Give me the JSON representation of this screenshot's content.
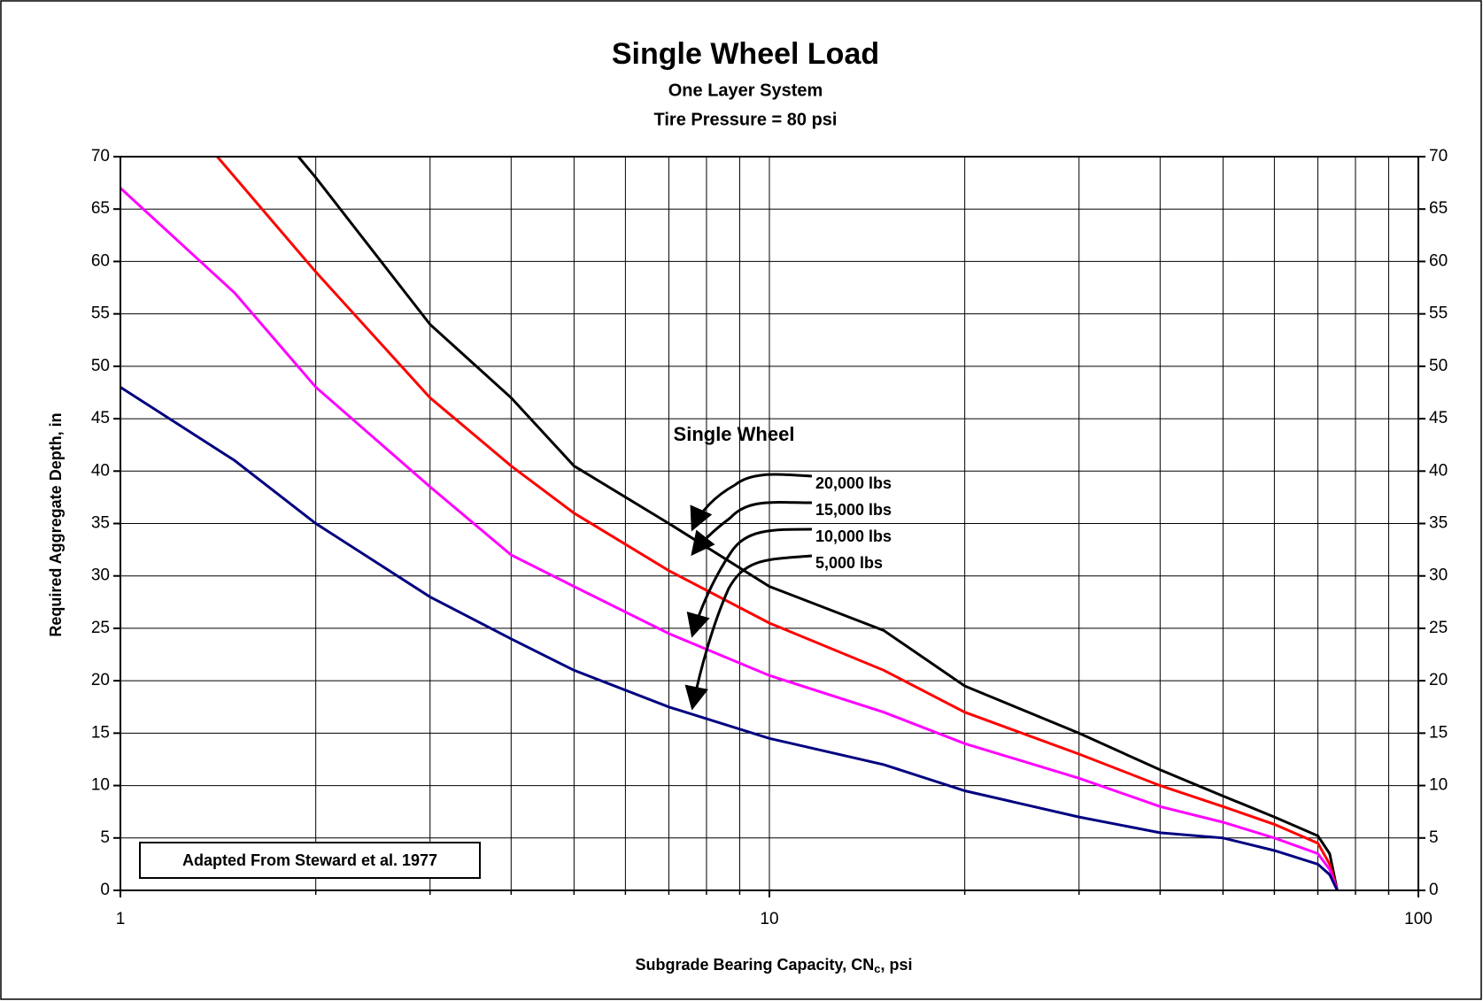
{
  "chart_data": {
    "type": "line",
    "title": "Single Wheel Load",
    "subtitle": [
      "One Layer System",
      "Tire Pressure = 80 psi"
    ],
    "x_label": [
      "Subgrade Bearing Capacity, CN",
      "c",
      ", psi"
    ],
    "y_label": "Required Aggregate Depth, in",
    "annotations": [
      "Single Wheel",
      "Adapted From Steward et al. 1977"
    ],
    "xscale": "log",
    "xlim": [
      1,
      100
    ],
    "xticks": [
      1,
      10,
      100
    ],
    "xminor": [
      2,
      3,
      4,
      5,
      6,
      7,
      8,
      9,
      20,
      30,
      40,
      50,
      60,
      70,
      80,
      90
    ],
    "ylim": [
      0,
      70
    ],
    "yticks": [
      0,
      5,
      10,
      15,
      20,
      25,
      30,
      35,
      40,
      45,
      50,
      55,
      60,
      65,
      70
    ],
    "grid": true,
    "series": [
      {
        "name": "20,000 lbs",
        "color": "#000000",
        "x": [
          1.88,
          2,
          3,
          4,
          5,
          7,
          10,
          15,
          20,
          30,
          40,
          50,
          60,
          70,
          73,
          75
        ],
        "values": [
          70,
          68,
          54,
          47,
          40.5,
          35,
          29,
          24.8,
          19.5,
          15,
          11.5,
          9,
          7,
          5.2,
          3.5,
          0
        ]
      },
      {
        "name": "15,000 lbs",
        "color": "#ff0000",
        "x": [
          1.41,
          2,
          3,
          4,
          5,
          7,
          10,
          15,
          20,
          30,
          40,
          50,
          60,
          70,
          73,
          75
        ],
        "values": [
          70,
          59,
          47,
          40.5,
          36,
          30.5,
          25.5,
          21,
          17,
          13,
          10,
          8,
          6.3,
          4.5,
          2.5,
          0
        ]
      },
      {
        "name": "10,000 lbs",
        "color": "#ff00ff",
        "x": [
          1,
          1.5,
          2,
          3,
          4,
          5,
          7,
          10,
          15,
          20,
          30,
          40,
          50,
          60,
          70,
          73,
          75
        ],
        "values": [
          67,
          57,
          48,
          38.5,
          32,
          29,
          24.5,
          20.5,
          17,
          14,
          10.7,
          8,
          6.5,
          5,
          3.5,
          2,
          0
        ]
      },
      {
        "name": "5,000 lbs",
        "color": "#000080",
        "x": [
          1,
          1.5,
          2,
          3,
          4,
          5,
          7,
          10,
          15,
          20,
          30,
          40,
          50,
          60,
          70,
          73,
          75
        ],
        "values": [
          48,
          41,
          35,
          28,
          24,
          21,
          17.5,
          14.5,
          12,
          9.5,
          7,
          5.5,
          5,
          3.8,
          2.5,
          1.5,
          0
        ]
      }
    ]
  }
}
